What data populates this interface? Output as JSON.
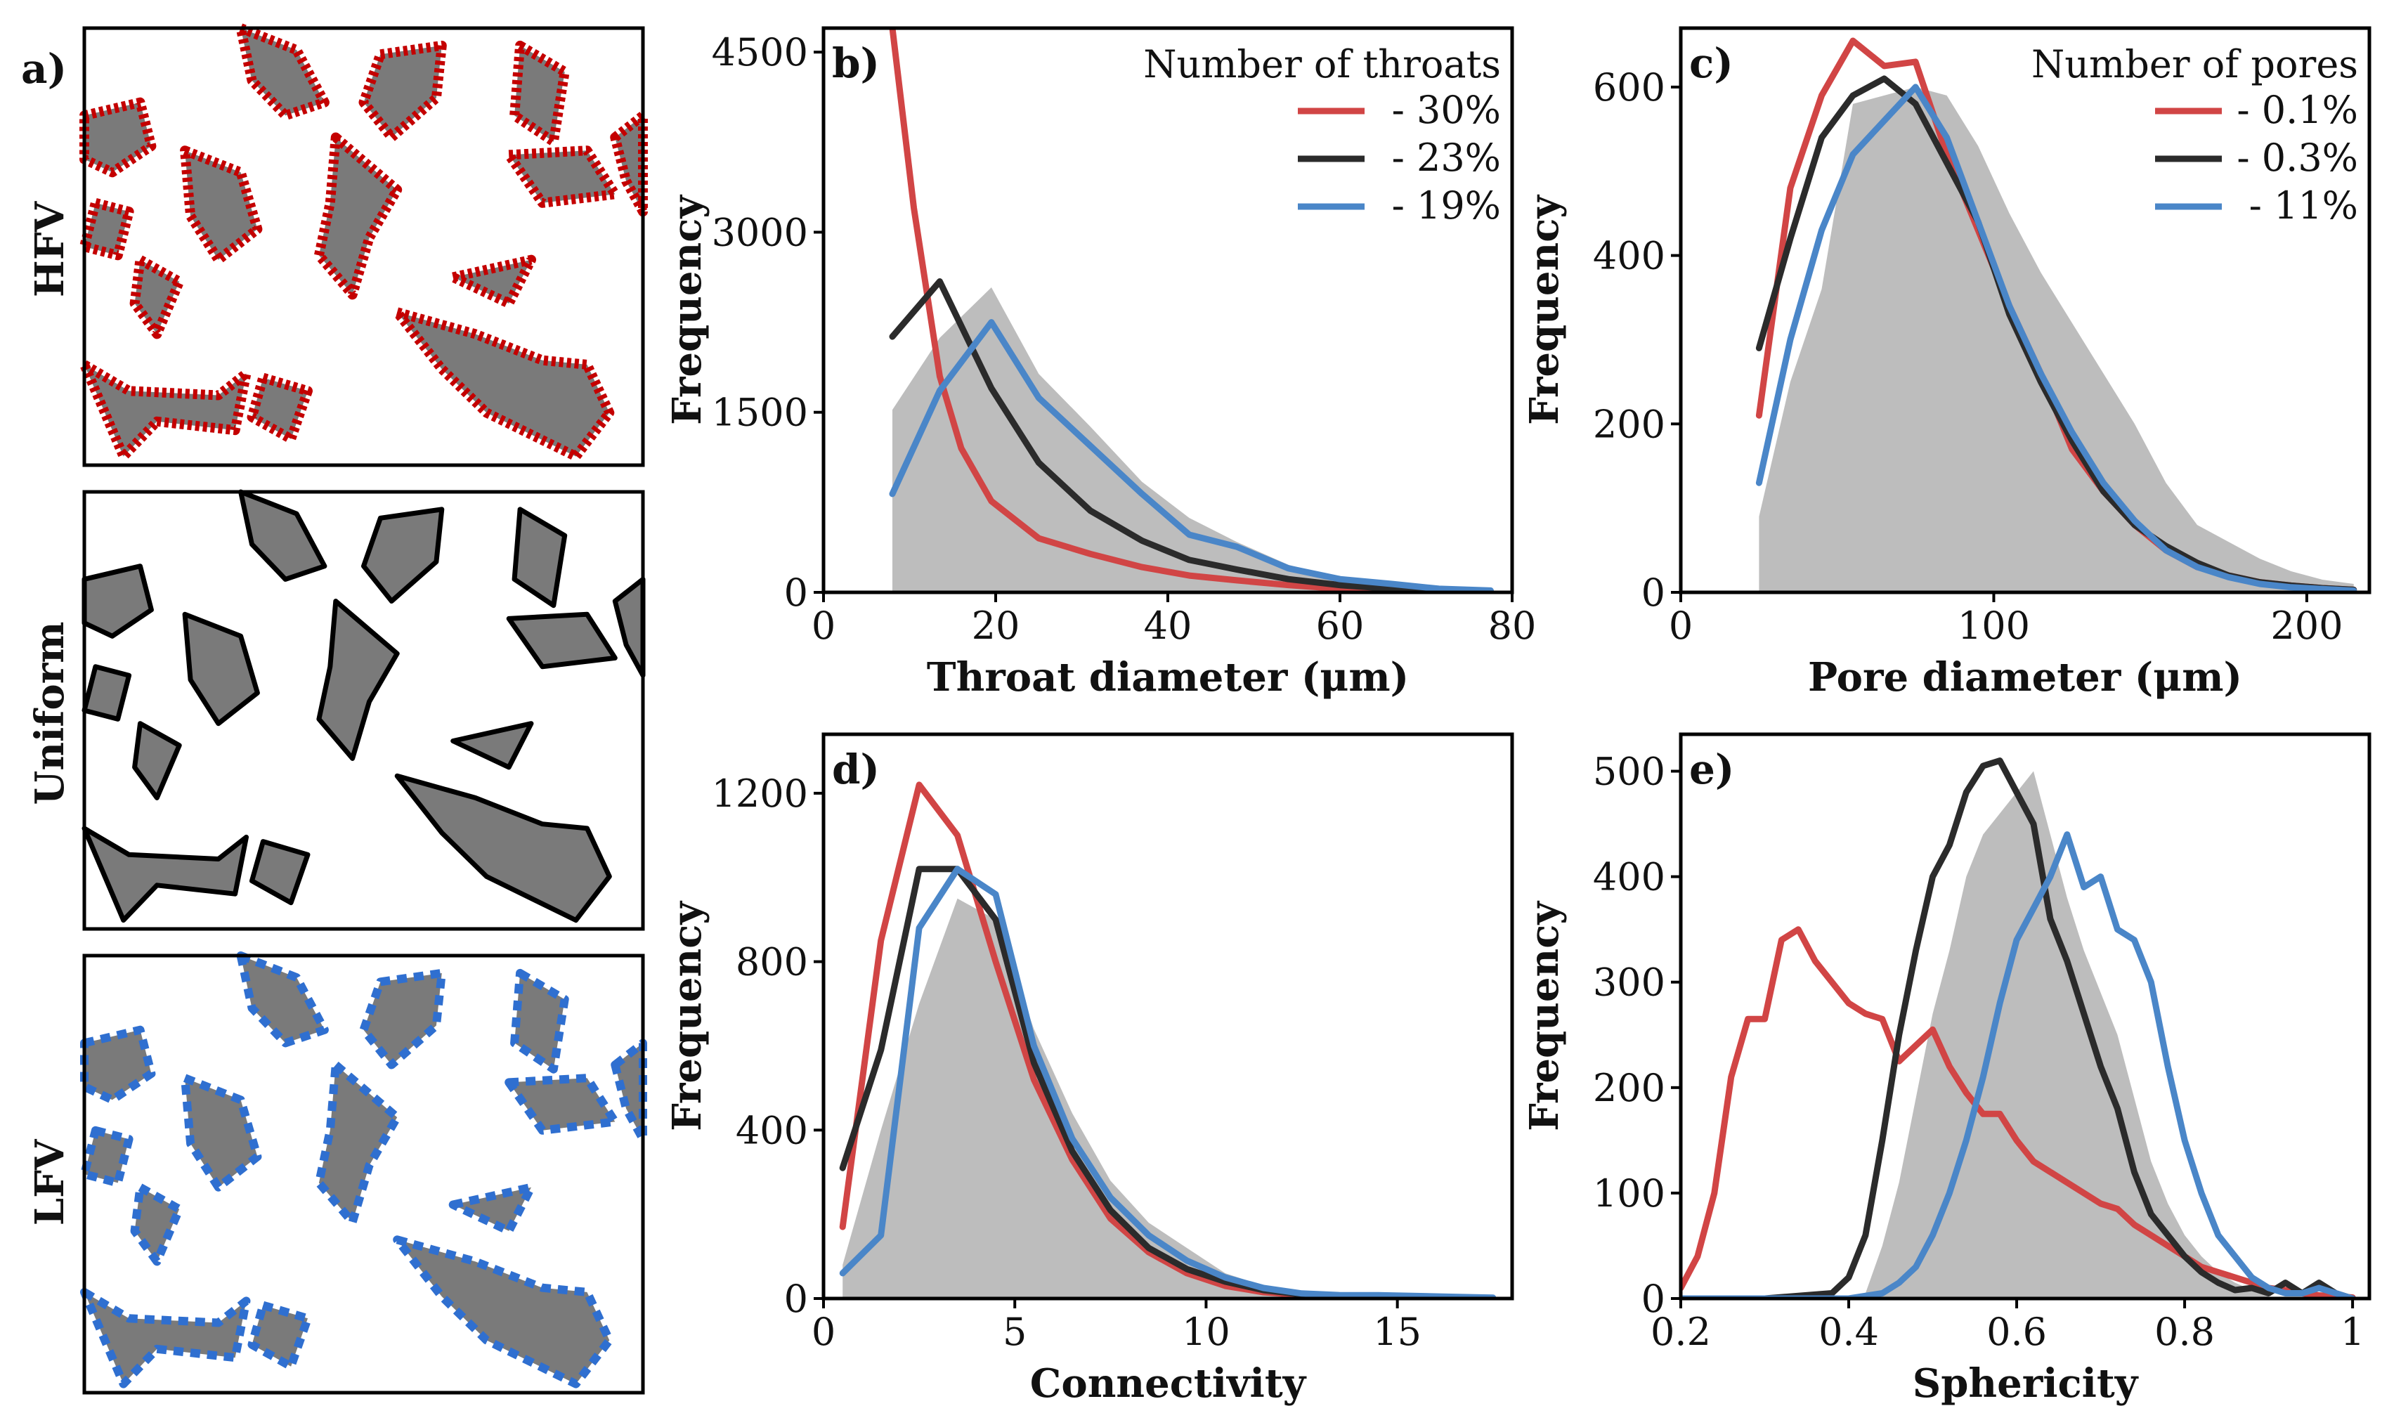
{
  "colors": {
    "red": "#d14545",
    "black": "#2b2b2b",
    "blue": "#4a86c8",
    "fill": "#bdbdbd",
    "solid": "#7a7a7a"
  },
  "panel_a": {
    "label": "a)",
    "rows": [
      {
        "name": "HFV",
        "accent": "#c40000"
      },
      {
        "name": "Uniform",
        "accent": "#000000"
      },
      {
        "name": "LFV",
        "accent": "#2f6fd0"
      }
    ]
  },
  "chart_data": [
    {
      "id": "b",
      "label": "b)",
      "type": "line",
      "xlabel": "Throat diameter (μm)",
      "ylabel": "Frequency",
      "xlim": [
        0,
        80
      ],
      "ylim": [
        0,
        4700
      ],
      "xticks": [
        0,
        20,
        40,
        60,
        80
      ],
      "yticks": [
        0,
        1500,
        3000,
        4500
      ],
      "legend_title": "Number of throats",
      "area": {
        "x": [
          8,
          13.5,
          19.5,
          25,
          31,
          37,
          42.5,
          48,
          54,
          60,
          66,
          71.5,
          77.5
        ],
        "y": [
          1520,
          2120,
          2540,
          1820,
          1380,
          920,
          620,
          420,
          230,
          120,
          60,
          30,
          10
        ]
      },
      "series": [
        {
          "name": "- 30%",
          "color": "#d14545",
          "x": [
            8,
            10.5,
            13.5,
            16,
            19.5,
            25,
            31,
            37,
            42.5,
            48,
            54,
            60,
            66,
            71.5,
            77.5
          ],
          "y": [
            4700,
            3200,
            1800,
            1200,
            760,
            450,
            320,
            210,
            140,
            100,
            60,
            30,
            15,
            8,
            4
          ]
        },
        {
          "name": "- 23%",
          "color": "#2b2b2b",
          "x": [
            8,
            13.5,
            19.5,
            25,
            31,
            37,
            42.5,
            48,
            54,
            60,
            66,
            71.5,
            77.5
          ],
          "y": [
            2130,
            2590,
            1700,
            1080,
            680,
            430,
            270,
            190,
            110,
            60,
            30,
            15,
            8
          ]
        },
        {
          "name": "- 19%",
          "color": "#4a86c8",
          "x": [
            8,
            13.5,
            19.5,
            25,
            31,
            37,
            42.5,
            48,
            54,
            60,
            66,
            71.5,
            77.5
          ],
          "y": [
            820,
            1680,
            2250,
            1620,
            1220,
            820,
            480,
            380,
            200,
            110,
            70,
            30,
            15
          ]
        }
      ]
    },
    {
      "id": "c",
      "label": "c)",
      "type": "line",
      "xlabel": "Pore diameter (μm)",
      "ylabel": "Frequency",
      "xlim": [
        0,
        220
      ],
      "ylim": [
        0,
        670
      ],
      "xticks": [
        0,
        100,
        200
      ],
      "yticks": [
        0,
        200,
        400,
        600
      ],
      "legend_title": "Number of pores",
      "area": {
        "x": [
          25,
          35,
          45,
          55,
          65,
          75,
          85,
          95,
          105,
          115,
          125,
          135,
          145,
          155,
          165,
          175,
          185,
          195,
          205,
          215
        ],
        "y": [
          90,
          250,
          360,
          580,
          590,
          600,
          590,
          530,
          450,
          380,
          320,
          260,
          200,
          130,
          80,
          60,
          40,
          25,
          15,
          10
        ]
      },
      "series": [
        {
          "name": "- 0.1%",
          "color": "#d14545",
          "x": [
            25,
            35,
            45,
            55,
            65,
            75,
            85,
            95,
            105,
            115,
            125,
            135,
            145,
            155,
            165,
            175,
            185,
            195,
            205,
            215
          ],
          "y": [
            210,
            480,
            590,
            655,
            625,
            630,
            520,
            430,
            340,
            260,
            170,
            120,
            80,
            50,
            30,
            20,
            12,
            8,
            5,
            3
          ]
        },
        {
          "name": "- 0.3%",
          "color": "#2b2b2b",
          "x": [
            25,
            35,
            45,
            55,
            65,
            75,
            85,
            95,
            105,
            115,
            125,
            135,
            145,
            155,
            165,
            175,
            185,
            195,
            205,
            215
          ],
          "y": [
            290,
            420,
            540,
            590,
            610,
            580,
            510,
            440,
            330,
            250,
            180,
            120,
            80,
            55,
            35,
            20,
            12,
            8,
            5,
            3
          ]
        },
        {
          "name": "- 11%",
          "color": "#4a86c8",
          "x": [
            25,
            35,
            45,
            55,
            65,
            75,
            85,
            95,
            105,
            115,
            125,
            135,
            145,
            155,
            165,
            175,
            185,
            195,
            205,
            215
          ],
          "y": [
            130,
            300,
            430,
            520,
            560,
            600,
            540,
            440,
            340,
            260,
            190,
            130,
            85,
            50,
            30,
            18,
            10,
            6,
            4,
            2
          ]
        }
      ]
    },
    {
      "id": "d",
      "label": "d)",
      "type": "line",
      "xlabel": "Connectivity",
      "ylabel": "Frequency",
      "xlim": [
        0,
        18
      ],
      "ylim": [
        0,
        1340
      ],
      "xticks": [
        0,
        5,
        10,
        15
      ],
      "yticks": [
        0,
        400,
        800,
        1200
      ],
      "area": {
        "x": [
          0.5,
          1.5,
          2.5,
          3.5,
          4.5,
          5.5,
          6.5,
          7.5,
          8.5,
          9.5,
          10.5,
          11.5,
          12.5,
          13.5,
          14.5,
          15.5,
          16.5,
          17.5
        ],
        "y": [
          80,
          400,
          700,
          950,
          900,
          640,
          440,
          280,
          180,
          120,
          60,
          30,
          15,
          8,
          5,
          3,
          2,
          1
        ]
      },
      "series": [
        {
          "name": "red",
          "color": "#d14545",
          "x": [
            0.5,
            1.5,
            2.5,
            3.5,
            4.5,
            5.5,
            6.5,
            7.5,
            8.5,
            9.5,
            10.5,
            11.5,
            12.5,
            13.5,
            14.5,
            15.5,
            16.5,
            17.5
          ],
          "y": [
            170,
            850,
            1220,
            1100,
            800,
            520,
            330,
            190,
            110,
            60,
            30,
            15,
            8,
            4,
            2,
            1,
            1,
            0
          ]
        },
        {
          "name": "black",
          "color": "#2b2b2b",
          "x": [
            0.5,
            1.5,
            2.5,
            3.5,
            4.5,
            5.5,
            6.5,
            7.5,
            8.5,
            9.5,
            10.5,
            11.5,
            12.5,
            13.5,
            14.5,
            15.5,
            16.5,
            17.5
          ],
          "y": [
            310,
            590,
            1020,
            1020,
            900,
            560,
            350,
            210,
            120,
            70,
            40,
            20,
            10,
            5,
            3,
            2,
            1,
            0
          ]
        },
        {
          "name": "blue",
          "color": "#4a86c8",
          "x": [
            0.5,
            1.5,
            2.5,
            3.5,
            4.5,
            5.5,
            6.5,
            7.5,
            8.5,
            9.5,
            10.5,
            11.5,
            12.5,
            13.5,
            14.5,
            15.5,
            16.5,
            17.5
          ],
          "y": [
            60,
            150,
            880,
            1020,
            960,
            600,
            380,
            240,
            150,
            90,
            50,
            25,
            12,
            8,
            8,
            6,
            4,
            2
          ]
        }
      ]
    },
    {
      "id": "e",
      "label": "e)",
      "type": "line",
      "xlabel": "Sphericity",
      "ylabel": "Frequency",
      "xlim": [
        0.2,
        1.02
      ],
      "ylim": [
        0,
        535
      ],
      "xticks": [
        0.2,
        0.4,
        0.6,
        0.8,
        1.0
      ],
      "yticks": [
        0,
        100,
        200,
        300,
        400,
        500
      ],
      "area": {
        "x": [
          0.42,
          0.44,
          0.46,
          0.48,
          0.5,
          0.52,
          0.54,
          0.56,
          0.58,
          0.6,
          0.62,
          0.64,
          0.66,
          0.68,
          0.7,
          0.72,
          0.74,
          0.76,
          0.78,
          0.8,
          0.82,
          0.84,
          0.86,
          0.88,
          0.9
        ],
        "y": [
          5,
          50,
          110,
          190,
          270,
          330,
          400,
          440,
          460,
          480,
          500,
          440,
          380,
          330,
          290,
          250,
          190,
          130,
          90,
          60,
          40,
          25,
          15,
          8,
          3
        ]
      },
      "series": [
        {
          "name": "red",
          "color": "#d14545",
          "x": [
            0.2,
            0.22,
            0.24,
            0.26,
            0.28,
            0.3,
            0.32,
            0.34,
            0.36,
            0.38,
            0.4,
            0.42,
            0.44,
            0.46,
            0.48,
            0.5,
            0.52,
            0.54,
            0.56,
            0.58,
            0.6,
            0.62,
            0.64,
            0.66,
            0.68,
            0.7,
            0.72,
            0.74,
            0.76,
            0.78,
            0.8,
            0.82,
            0.84,
            0.86,
            0.88,
            0.9,
            0.92,
            0.94,
            0.96,
            0.98,
            1.0
          ],
          "y": [
            10,
            40,
            100,
            210,
            265,
            265,
            340,
            350,
            320,
            300,
            280,
            270,
            265,
            225,
            240,
            255,
            220,
            195,
            175,
            175,
            150,
            130,
            120,
            110,
            100,
            90,
            85,
            70,
            60,
            50,
            40,
            30,
            25,
            20,
            15,
            10,
            8,
            5,
            3,
            2,
            1
          ]
        },
        {
          "name": "black",
          "color": "#2b2b2b",
          "x": [
            0.2,
            0.3,
            0.38,
            0.4,
            0.42,
            0.44,
            0.46,
            0.48,
            0.5,
            0.52,
            0.54,
            0.56,
            0.58,
            0.6,
            0.62,
            0.64,
            0.66,
            0.68,
            0.7,
            0.72,
            0.74,
            0.76,
            0.78,
            0.8,
            0.82,
            0.84,
            0.86,
            0.88,
            0.9,
            0.92,
            0.94,
            0.96,
            0.98,
            1.0
          ],
          "y": [
            0,
            0,
            5,
            20,
            60,
            150,
            250,
            330,
            400,
            430,
            480,
            505,
            510,
            480,
            450,
            360,
            320,
            270,
            220,
            180,
            120,
            80,
            60,
            40,
            25,
            15,
            8,
            10,
            5,
            15,
            5,
            15,
            5,
            0
          ]
        },
        {
          "name": "blue",
          "color": "#4a86c8",
          "x": [
            0.2,
            0.4,
            0.44,
            0.46,
            0.48,
            0.5,
            0.52,
            0.54,
            0.56,
            0.58,
            0.6,
            0.62,
            0.64,
            0.66,
            0.68,
            0.7,
            0.72,
            0.74,
            0.76,
            0.78,
            0.8,
            0.82,
            0.84,
            0.86,
            0.88,
            0.9,
            0.92,
            0.94,
            0.96,
            0.98,
            1.0
          ],
          "y": [
            0,
            0,
            5,
            15,
            30,
            60,
            100,
            150,
            210,
            280,
            340,
            370,
            400,
            440,
            390,
            400,
            350,
            340,
            300,
            220,
            150,
            100,
            60,
            40,
            20,
            10,
            5,
            5,
            10,
            5,
            0
          ]
        }
      ]
    }
  ]
}
